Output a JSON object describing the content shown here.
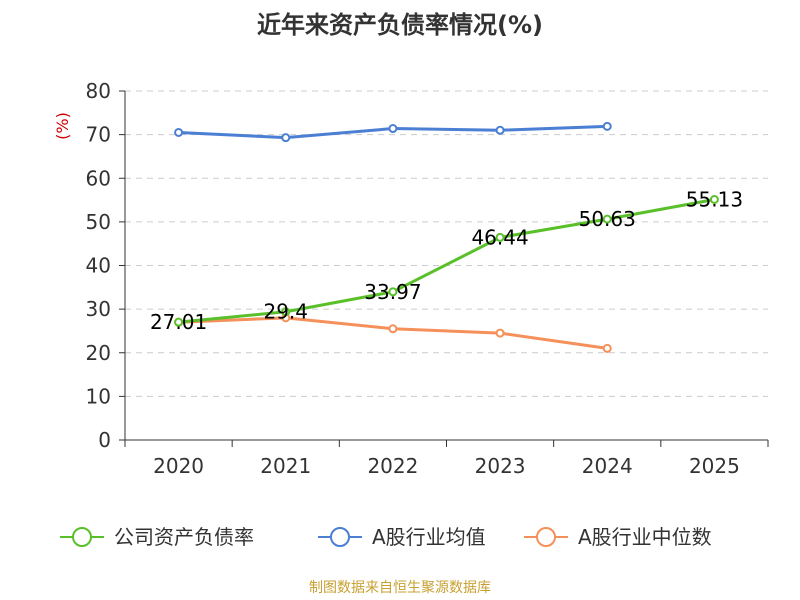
{
  "title": "近年来资产负债率情况(%)",
  "source": "制图数据来自恒生聚源数据库",
  "chart_data": {
    "type": "line",
    "title": "近年来资产负债率情况(%)",
    "ylabel": "(%)",
    "xlabel": "",
    "categories": [
      "2020",
      "2021",
      "2022",
      "2023",
      "2024",
      "2025"
    ],
    "ylim": [
      0,
      80
    ],
    "yticks": [
      0,
      10,
      20,
      30,
      40,
      50,
      60,
      70,
      80
    ],
    "grid": true,
    "legend_position": "bottom",
    "series": [
      {
        "name": "公司资产负债率",
        "color": "#5ac02a",
        "values": [
          27.01,
          29.4,
          33.97,
          46.44,
          50.63,
          55.13
        ],
        "labels": [
          "27.01",
          "29.4",
          "33.97",
          "46.44",
          "50.63",
          "55.13"
        ]
      },
      {
        "name": "A股行业均值",
        "color": "#4a7fd4",
        "values": [
          70.5,
          69.3,
          71.4,
          71.0,
          71.9,
          null
        ]
      },
      {
        "name": "A股行业中位数",
        "color": "#f5905a",
        "values": [
          27.0,
          28.0,
          25.5,
          24.5,
          21.0,
          null
        ]
      }
    ]
  }
}
